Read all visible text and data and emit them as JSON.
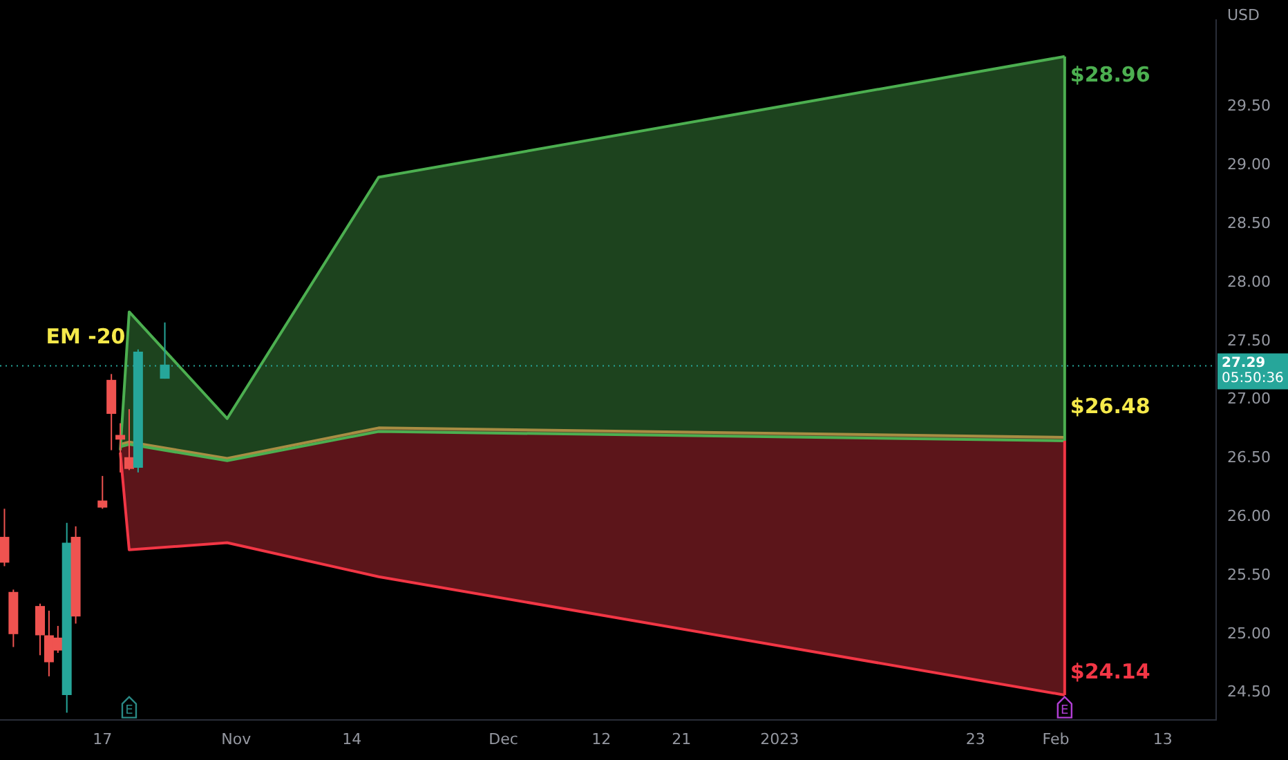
{
  "chart_data": {
    "type": "candlestick",
    "ylabel": "USD",
    "x": [
      "2022-10-06",
      "2022-10-07",
      "2022-10-10",
      "2022-10-11",
      "2022-10-12",
      "2022-10-13",
      "2022-10-14",
      "2022-10-17",
      "2022-10-18",
      "2022-10-19",
      "2022-10-20",
      "2022-10-21",
      "2022-10-24"
    ],
    "ohlc": [
      [
        25.83,
        26.07,
        25.58,
        25.61
      ],
      [
        25.36,
        25.38,
        24.89,
        25.0
      ],
      [
        25.24,
        25.26,
        24.82,
        24.99
      ],
      [
        24.99,
        25.2,
        24.64,
        24.76
      ],
      [
        24.97,
        25.07,
        24.84,
        24.86
      ],
      [
        24.48,
        25.95,
        24.33,
        25.78
      ],
      [
        25.83,
        25.92,
        25.09,
        25.15
      ],
      [
        26.14,
        26.35,
        26.07,
        26.08
      ],
      [
        27.17,
        27.22,
        26.57,
        26.88
      ],
      [
        26.7,
        26.8,
        26.38,
        26.66
      ],
      [
        26.51,
        26.92,
        26.4,
        26.41
      ],
      [
        26.42,
        27.43,
        26.38,
        27.41
      ],
      [
        27.18,
        27.66,
        27.18,
        27.3
      ]
    ],
    "colors": [
      "#ef5350",
      "#ef5350",
      "#ef5350",
      "#ef5350",
      "#ef5350",
      "#26a69a",
      "#ef5350",
      "#ef5350",
      "#ef5350",
      "#ef5350",
      "#ef5350",
      "#26a69a",
      "#26a69a"
    ],
    "series": [
      {
        "type": "area",
        "color": "#4caf50",
        "x": [
          "2022-10-19",
          "2022-10-20",
          "2022-10-31",
          "2022-11-17",
          "2023-02-02"
        ],
        "values": [
          26.57,
          27.75,
          26.84,
          28.9,
          29.93
        ]
      },
      {
        "type": "line",
        "color": "#4caf50",
        "x": [
          "2022-10-19",
          "2022-10-20",
          "2022-10-31",
          "2022-11-17",
          "2023-02-02"
        ],
        "values": [
          26.6,
          26.62,
          26.48,
          26.73,
          26.65
        ]
      },
      {
        "type": "area",
        "color": "#e0783c",
        "x": [
          "2022-10-19",
          "2022-10-20",
          "2022-10-31",
          "2022-11-17",
          "2023-02-02"
        ],
        "values": [
          26.62,
          26.64,
          26.5,
          26.76,
          26.68
        ]
      },
      {
        "type": "line",
        "color": "#f23645",
        "x": [
          "2022-10-19",
          "2022-10-20",
          "2022-10-31",
          "2022-11-17",
          "2023-02-02"
        ],
        "values": [
          26.55,
          25.72,
          25.78,
          25.49,
          24.48
        ]
      }
    ],
    "xlim": [
      "2022-10-05T12:00",
      "2023-02-19"
    ],
    "xticks": [
      {
        "value": "2022-10-17",
        "label": "17"
      },
      {
        "value": "2022-11-01",
        "label": "Nov"
      },
      {
        "value": "2022-11-14",
        "label": "14"
      },
      {
        "value": "2022-12-01",
        "label": "Dec"
      },
      {
        "value": "2022-12-12",
        "label": "12"
      },
      {
        "value": "2022-12-21",
        "label": "21"
      },
      {
        "value": "2023-01-01",
        "label": "2023"
      },
      {
        "value": "2023-01-23",
        "label": "23"
      },
      {
        "value": "2023-02-01",
        "label": "Feb"
      },
      {
        "value": "2023-02-13",
        "label": "13"
      }
    ],
    "ylim": [
      24.27,
      30.24
    ],
    "yticks": [
      {
        "value": 24.5,
        "label": "24.50"
      },
      {
        "value": 25,
        "label": "25.00"
      },
      {
        "value": 25.5,
        "label": "25.50"
      },
      {
        "value": 26,
        "label": "26.00"
      },
      {
        "value": 26.5,
        "label": "26.50"
      },
      {
        "value": 27,
        "label": "27.00"
      },
      {
        "value": 27.5,
        "label": "27.50"
      },
      {
        "value": 28,
        "label": "28.00"
      },
      {
        "value": 28.5,
        "label": "28.50"
      },
      {
        "value": 29,
        "label": "29.00"
      },
      {
        "value": 29.5,
        "label": "29.50"
      }
    ],
    "ref_lines": [
      {
        "axis": "y",
        "value": 27.29,
        "label": "27.29",
        "color": "#26a69a",
        "line_style": "dotted"
      }
    ],
    "annotations": [
      "EM -20",
      {
        "text": "$28.96",
        "x": "2023-02-02",
        "y": 29.93
      },
      {
        "text": "$26.48",
        "x": "2023-02-02",
        "y": 26.65
      },
      {
        "text": "$24.14",
        "x": "2023-02-02",
        "y": 24.48
      },
      "05:50:36",
      {
        "text": "E",
        "x": "2022-10-20",
        "y": 24.37
      },
      {
        "text": "E",
        "x": "2023-02-02",
        "y": 24.37
      }
    ],
    "grid": false,
    "legend": false
  }
}
